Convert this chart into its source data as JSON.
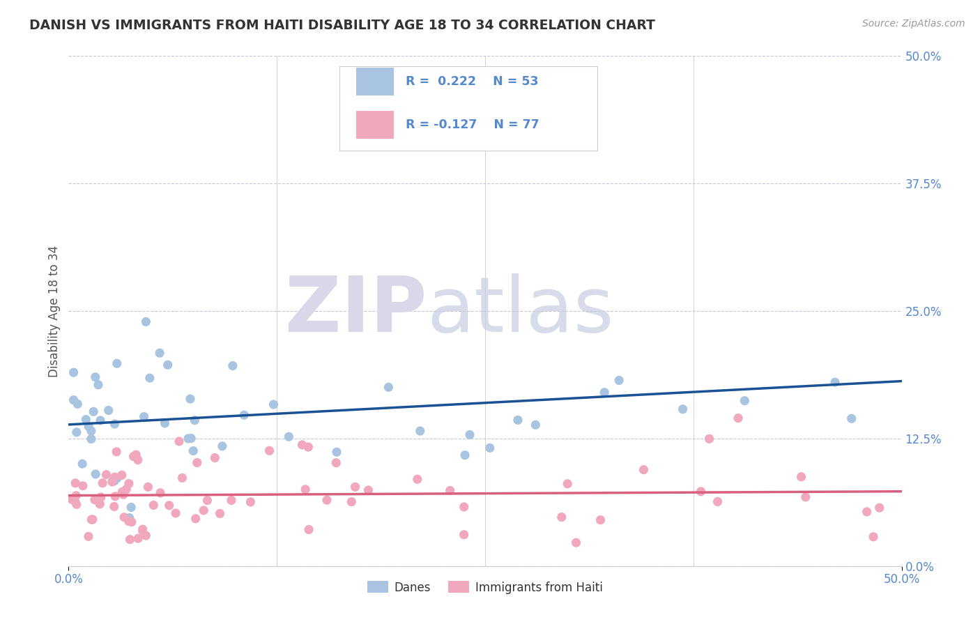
{
  "title": "DANISH VS IMMIGRANTS FROM HAITI DISABILITY AGE 18 TO 34 CORRELATION CHART",
  "source": "Source: ZipAtlas.com",
  "ylabel": "Disability Age 18 to 34",
  "xrange": [
    0.0,
    50.0
  ],
  "yrange": [
    0.0,
    50.0
  ],
  "danes_R": 0.222,
  "danes_N": 53,
  "haiti_R": -0.127,
  "haiti_N": 77,
  "danes_color": "#a8c4e0",
  "haiti_color": "#f2a8bc",
  "danes_line_color": "#1a5296",
  "haiti_line_color": "#d95f7f",
  "legend_blue_label": "Danes",
  "legend_pink_label": "Immigrants from Haiti",
  "background_color": "#ffffff",
  "tick_color": "#5588cc",
  "grid_color": "#b8b8d0",
  "danes_trend_y0": 10.2,
  "danes_trend_y1": 21.0,
  "haiti_trend_y0": 8.0,
  "haiti_trend_y1": 6.2
}
